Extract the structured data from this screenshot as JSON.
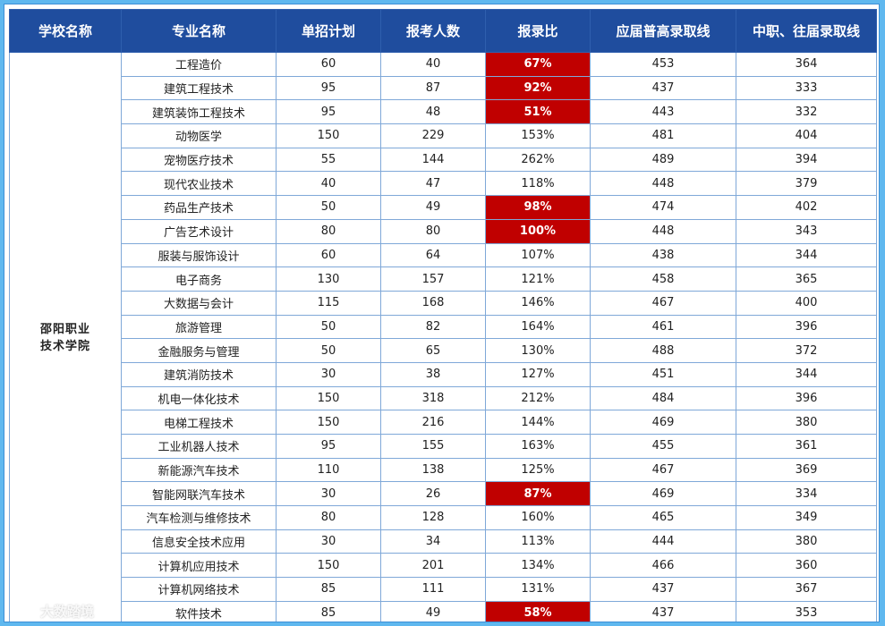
{
  "headers": {
    "school": "学校名称",
    "major": "专业名称",
    "plan": "单招计划",
    "applicants": "报考人数",
    "ratio": "报录比",
    "general_cutoff": "应届普高录取线",
    "vocational_cutoff": "中职、往届录取线"
  },
  "school": {
    "line1": "邵阳职业",
    "line2": "技术学院"
  },
  "rows": [
    {
      "major": "工程造价",
      "plan": "60",
      "applicants": "40",
      "ratio": "67%",
      "general": "453",
      "vocational": "364",
      "highlight": true
    },
    {
      "major": "建筑工程技术",
      "plan": "95",
      "applicants": "87",
      "ratio": "92%",
      "general": "437",
      "vocational": "333",
      "highlight": true
    },
    {
      "major": "建筑装饰工程技术",
      "plan": "95",
      "applicants": "48",
      "ratio": "51%",
      "general": "443",
      "vocational": "332",
      "highlight": true
    },
    {
      "major": "动物医学",
      "plan": "150",
      "applicants": "229",
      "ratio": "153%",
      "general": "481",
      "vocational": "404",
      "highlight": false
    },
    {
      "major": "宠物医疗技术",
      "plan": "55",
      "applicants": "144",
      "ratio": "262%",
      "general": "489",
      "vocational": "394",
      "highlight": false
    },
    {
      "major": "现代农业技术",
      "plan": "40",
      "applicants": "47",
      "ratio": "118%",
      "general": "448",
      "vocational": "379",
      "highlight": false
    },
    {
      "major": "药品生产技术",
      "plan": "50",
      "applicants": "49",
      "ratio": "98%",
      "general": "474",
      "vocational": "402",
      "highlight": true
    },
    {
      "major": "广告艺术设计",
      "plan": "80",
      "applicants": "80",
      "ratio": "100%",
      "general": "448",
      "vocational": "343",
      "highlight": true
    },
    {
      "major": "服装与服饰设计",
      "plan": "60",
      "applicants": "64",
      "ratio": "107%",
      "general": "438",
      "vocational": "344",
      "highlight": false
    },
    {
      "major": "电子商务",
      "plan": "130",
      "applicants": "157",
      "ratio": "121%",
      "general": "458",
      "vocational": "365",
      "highlight": false
    },
    {
      "major": "大数据与会计",
      "plan": "115",
      "applicants": "168",
      "ratio": "146%",
      "general": "467",
      "vocational": "400",
      "highlight": false
    },
    {
      "major": "旅游管理",
      "plan": "50",
      "applicants": "82",
      "ratio": "164%",
      "general": "461",
      "vocational": "396",
      "highlight": false
    },
    {
      "major": "金融服务与管理",
      "plan": "50",
      "applicants": "65",
      "ratio": "130%",
      "general": "488",
      "vocational": "372",
      "highlight": false
    },
    {
      "major": "建筑消防技术",
      "plan": "30",
      "applicants": "38",
      "ratio": "127%",
      "general": "451",
      "vocational": "344",
      "highlight": false
    },
    {
      "major": "机电一体化技术",
      "plan": "150",
      "applicants": "318",
      "ratio": "212%",
      "general": "484",
      "vocational": "396",
      "highlight": false
    },
    {
      "major": "电梯工程技术",
      "plan": "150",
      "applicants": "216",
      "ratio": "144%",
      "general": "469",
      "vocational": "380",
      "highlight": false
    },
    {
      "major": "工业机器人技术",
      "plan": "95",
      "applicants": "155",
      "ratio": "163%",
      "general": "455",
      "vocational": "361",
      "highlight": false
    },
    {
      "major": "新能源汽车技术",
      "plan": "110",
      "applicants": "138",
      "ratio": "125%",
      "general": "467",
      "vocational": "369",
      "highlight": false
    },
    {
      "major": "智能网联汽车技术",
      "plan": "30",
      "applicants": "26",
      "ratio": "87%",
      "general": "469",
      "vocational": "334",
      "highlight": true
    },
    {
      "major": "汽车检测与维修技术",
      "plan": "80",
      "applicants": "128",
      "ratio": "160%",
      "general": "465",
      "vocational": "349",
      "highlight": false
    },
    {
      "major": "信息安全技术应用",
      "plan": "30",
      "applicants": "34",
      "ratio": "113%",
      "general": "444",
      "vocational": "380",
      "highlight": false
    },
    {
      "major": "计算机应用技术",
      "plan": "150",
      "applicants": "201",
      "ratio": "134%",
      "general": "466",
      "vocational": "360",
      "highlight": false
    },
    {
      "major": "计算机网络技术",
      "plan": "85",
      "applicants": "111",
      "ratio": "131%",
      "general": "437",
      "vocational": "367",
      "highlight": false
    },
    {
      "major": "软件技术",
      "plan": "85",
      "applicants": "49",
      "ratio": "58%",
      "general": "437",
      "vocational": "353",
      "highlight": true
    }
  ],
  "colors": {
    "header_bg": "#1f4d9e",
    "applicants_bg": "#c5e0b3",
    "low_ratio_bg": "#c00000",
    "outer_bg": "#5fb8ef"
  },
  "watermark": {
    "text": "大数踏境",
    "icon": "weibo-logo-icon"
  }
}
